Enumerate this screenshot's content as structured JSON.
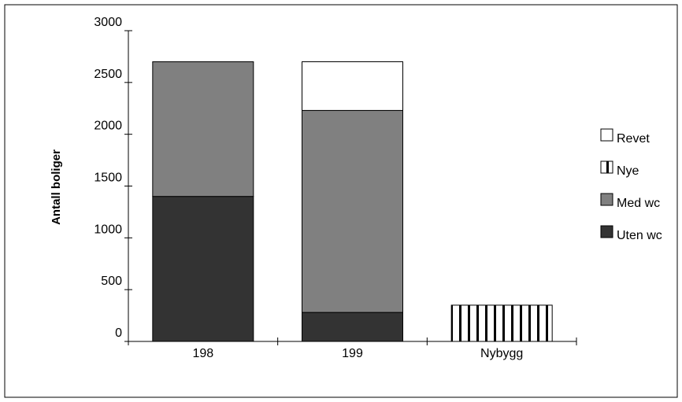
{
  "chart_data": {
    "type": "bar",
    "stacked": true,
    "categories": [
      "198",
      "199",
      "Nybygg"
    ],
    "category_labels": [
      "198",
      "199",
      "Nybygg"
    ],
    "ylabel": "Antall boliger",
    "xlabel": "",
    "ylim": [
      0,
      3000
    ],
    "yticks": [
      0,
      500,
      1000,
      1500,
      2000,
      2500,
      3000
    ],
    "legend_position": "right",
    "grid": false,
    "series": [
      {
        "name": "Uten wc",
        "values": [
          1400,
          280,
          0
        ],
        "color": "#333333",
        "pattern": "solid"
      },
      {
        "name": "Med wc",
        "values": [
          1300,
          1950,
          0
        ],
        "color": "#808080",
        "pattern": "solid"
      },
      {
        "name": "Nye",
        "values": [
          0,
          0,
          350
        ],
        "color": "#ffffff",
        "pattern": "vertical-stripes"
      },
      {
        "name": "Revet",
        "values": [
          0,
          470,
          0
        ],
        "color": "#ffffff",
        "pattern": "solid"
      }
    ],
    "legend_order": [
      "Revet",
      "Nye",
      "Med wc",
      "Uten wc"
    ],
    "legend_labels": [
      "Revet",
      "Nye",
      "Med wc",
      "Uten wc"
    ]
  }
}
